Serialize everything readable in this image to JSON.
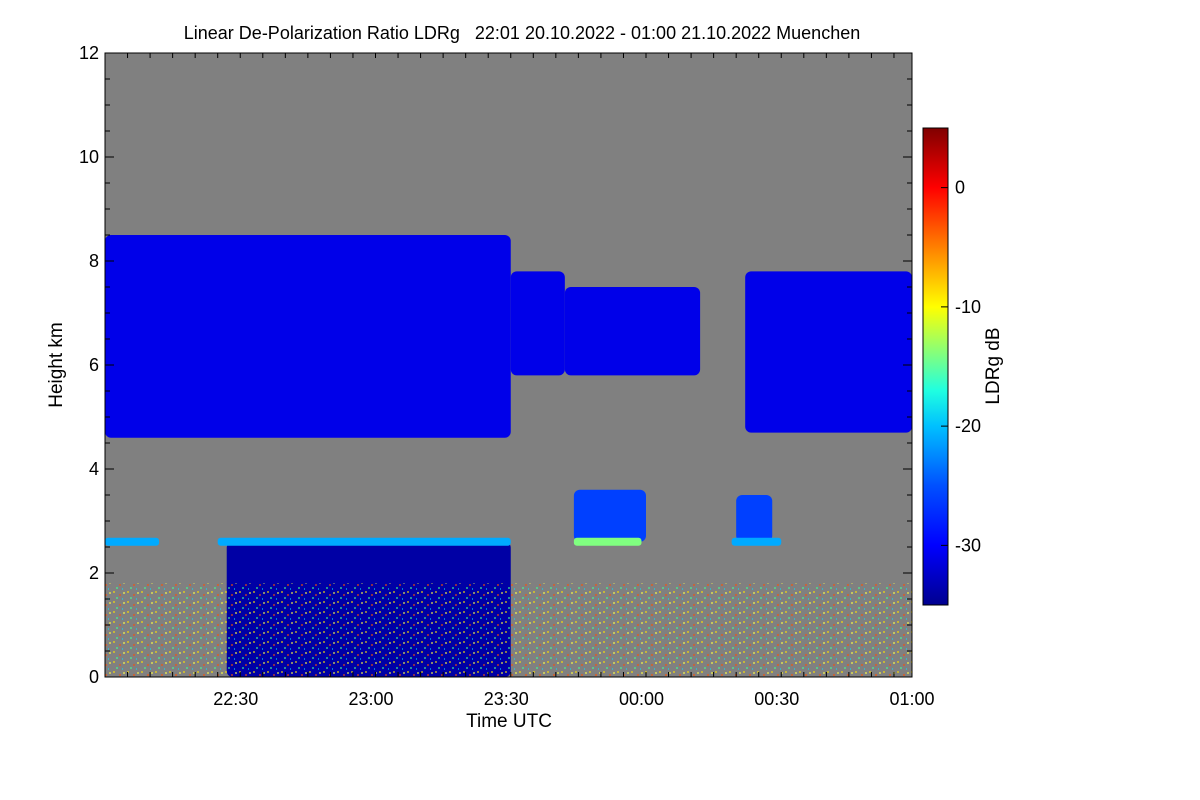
{
  "chart_data": {
    "type": "heatmap",
    "title": "Linear De-Polarization Ratio LDRg   22:01 20.10.2022 - 01:00 21.10.2022 Muenchen",
    "xlabel": "Time UTC",
    "ylabel": "Height km",
    "x_ticks": [
      "22:30",
      "23:00",
      "23:30",
      "00:00",
      "00:30",
      "01:00"
    ],
    "x_tick_minutes": [
      29,
      59,
      89,
      119,
      149,
      179
    ],
    "xlim_minutes": [
      0,
      179
    ],
    "y_ticks": [
      "0",
      "2",
      "4",
      "6",
      "8",
      "10",
      "12"
    ],
    "ylim": [
      0,
      12
    ],
    "colorbar": {
      "label": "LDRg dB",
      "ticks": [
        "0",
        "-10",
        "-20",
        "-30"
      ],
      "tick_values": [
        0,
        -10,
        -20,
        -30
      ],
      "range": [
        -35,
        5
      ],
      "colors": [
        "#00008f",
        "#0000ff",
        "#0080ff",
        "#00ffff",
        "#80ff80",
        "#ffff00",
        "#ff8000",
        "#ff0000",
        "#800000"
      ]
    },
    "no_data_color": "#808080",
    "features": [
      {
        "name": "high cloud layer",
        "t": [
          0,
          90
        ],
        "h_bottom": 4.6,
        "h_top": 8.5,
        "ldr_db": -31
      },
      {
        "name": "high cloud layer",
        "t": [
          90,
          102
        ],
        "h_bottom": 5.8,
        "h_top": 7.8,
        "ldr_db": -31
      },
      {
        "name": "high cloud layer",
        "t": [
          102,
          132
        ],
        "h_bottom": 5.8,
        "h_top": 7.5,
        "ldr_db": -31
      },
      {
        "name": "high cloud layer",
        "t": [
          142,
          179
        ],
        "h_bottom": 4.7,
        "h_top": 7.8,
        "ldr_db": -31
      },
      {
        "name": "thin layer",
        "t": [
          0,
          12
        ],
        "h": 2.6,
        "ldr_db": -21
      },
      {
        "name": "thin layer",
        "t": [
          25,
          90
        ],
        "h": 2.6,
        "ldr_db": -21
      },
      {
        "name": "thin layer",
        "t": [
          104,
          119
        ],
        "h": 2.6,
        "ldr_db": -14
      },
      {
        "name": "thin layer",
        "t": [
          139,
          150
        ],
        "h": 2.6,
        "ldr_db": -21
      },
      {
        "name": "mid-level cloud",
        "t": [
          104,
          120
        ],
        "h_bottom": 2.6,
        "h_top": 3.6,
        "ldr_db": -26
      },
      {
        "name": "mid-level cloud",
        "t": [
          140,
          148
        ],
        "h_bottom": 2.6,
        "h_top": 3.5,
        "ldr_db": -26
      },
      {
        "name": "lower layer",
        "t": [
          27,
          90
        ],
        "h_bottom": 0,
        "h_top": 2.6,
        "ldr_db": -34
      }
    ]
  }
}
